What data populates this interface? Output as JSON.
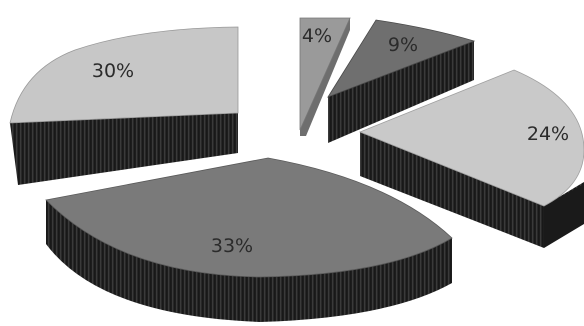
{
  "chart_data": {
    "type": "pie",
    "style": "3d-exploded",
    "title": "",
    "slices": [
      {
        "label": "4%",
        "value": 4,
        "color": "#9a9a9a"
      },
      {
        "label": "9%",
        "value": 9,
        "color": "#6f6f6f"
      },
      {
        "label": "24%",
        "value": 24,
        "color": "#c9c9c9"
      },
      {
        "label": "33%",
        "value": 33,
        "color": "#7a7a7a"
      },
      {
        "label": "30%",
        "value": 30,
        "color": "#c7c7c7"
      }
    ]
  }
}
